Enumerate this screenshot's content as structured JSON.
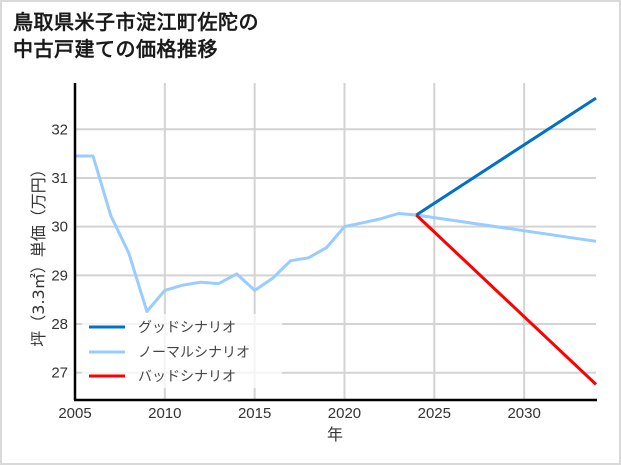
{
  "title": {
    "line1": "鳥取県米子市淀江町佐陀の",
    "line2": "中古戸建ての価格推移"
  },
  "chart_data": {
    "type": "line",
    "title": "鳥取県米子市淀江町佐陀の中古戸建ての価格推移",
    "xlabel": "年",
    "ylabel": "坪（3.3㎡）単価（万円）",
    "xlim": [
      2005,
      2034
    ],
    "ylim": [
      26.44,
      32.95
    ],
    "x_ticks": [
      2005,
      2010,
      2015,
      2020,
      2025,
      2030
    ],
    "y_ticks": [
      27,
      28,
      29,
      30,
      31,
      32
    ],
    "grid": true,
    "legend_position": "lower left",
    "series": [
      {
        "name": "グッドシナリオ",
        "color": "#0070c8",
        "x": [
          2024,
          2034
        ],
        "values": [
          30.24,
          32.64
        ]
      },
      {
        "name": "ノーマルシナリオ",
        "color": "#99ccff",
        "x": [
          2005,
          2006,
          2007,
          2008,
          2009,
          2010,
          2011,
          2012,
          2013,
          2014,
          2015,
          2016,
          2017,
          2018,
          2019,
          2020,
          2021,
          2022,
          2023,
          2024,
          2034
        ],
        "values": [
          31.45,
          31.45,
          30.22,
          29.45,
          28.26,
          28.69,
          28.8,
          28.86,
          28.83,
          29.03,
          28.69,
          28.94,
          29.3,
          29.36,
          29.57,
          30.0,
          30.08,
          30.16,
          30.27,
          30.24,
          29.7
        ]
      },
      {
        "name": "バッドシナリオ",
        "color": "#ff0000",
        "x": [
          2024,
          2034
        ],
        "values": [
          30.24,
          26.76
        ]
      }
    ]
  }
}
